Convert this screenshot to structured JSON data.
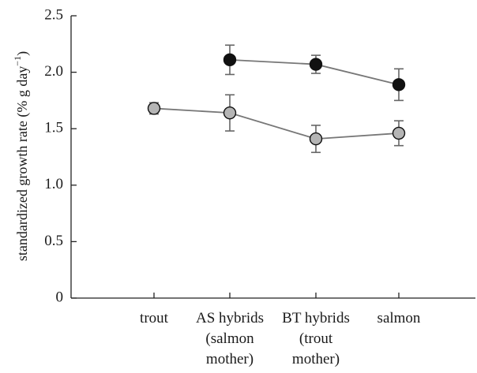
{
  "chart_data": {
    "type": "line",
    "title": "",
    "xlabel": "",
    "ylabel": "standardized growth rate (% g day",
    "ylabel_superscript": "−1",
    "ylabel_close": ")",
    "ylim": [
      0,
      2.5
    ],
    "yticks": [
      0,
      0.5,
      1.0,
      1.5,
      2.0,
      2.5
    ],
    "ytick_labels": [
      "0",
      "0.5",
      "1.0",
      "1.5",
      "2.0",
      "2.5"
    ],
    "categories": [
      [
        "trout"
      ],
      [
        "AS hybrids",
        "(salmon",
        "mother)"
      ],
      [
        "BT hybrids",
        "(trout",
        "mother)"
      ],
      [
        "salmon"
      ]
    ],
    "grid": false,
    "legend": "none",
    "series": [
      {
        "color": "#111111",
        "line_color": "#777777",
        "values": [
          null,
          2.11,
          2.07,
          1.89
        ],
        "err_low": [
          null,
          1.98,
          1.99,
          1.75
        ],
        "err_high": [
          null,
          2.24,
          2.15,
          2.03
        ]
      },
      {
        "color": "#b5b5b5",
        "line_color": "#777777",
        "values": [
          1.68,
          1.64,
          1.41,
          1.46
        ],
        "err_low": [
          1.63,
          1.48,
          1.29,
          1.35
        ],
        "err_high": [
          1.73,
          1.8,
          1.53,
          1.57
        ]
      }
    ]
  }
}
